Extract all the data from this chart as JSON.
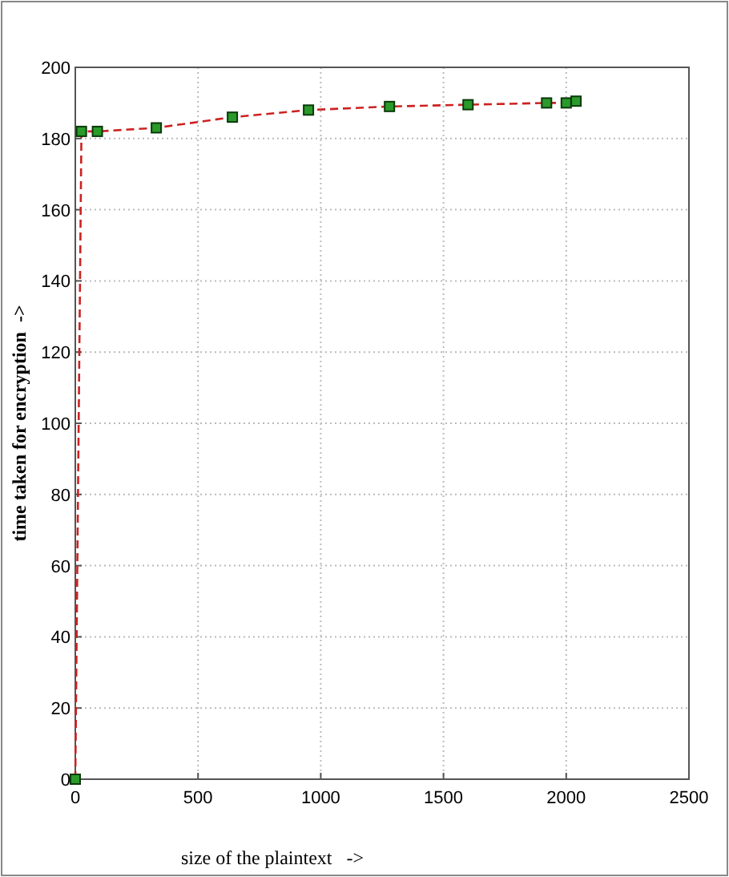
{
  "chart_data": {
    "type": "line",
    "xlabel": "size of the plaintext   ->",
    "ylabel": "time taken for encryption  ->",
    "x": [
      0,
      25,
      90,
      330,
      640,
      950,
      1280,
      1600,
      1920,
      2000,
      2040
    ],
    "series": [
      {
        "color": "#cc2222",
        "values": [
          0,
          182,
          182,
          183,
          186,
          188,
          189,
          189.5,
          190,
          190,
          190.5
        ]
      }
    ],
    "xlim": [
      0,
      2500
    ],
    "ylim": [
      0,
      200
    ],
    "xticks": [
      0,
      500,
      1000,
      1500,
      2000,
      2500
    ],
    "yticks": [
      0,
      20,
      40,
      60,
      80,
      100,
      120,
      140,
      160,
      180,
      200
    ],
    "grid": true,
    "marker": "square",
    "line_style": "dashed"
  }
}
